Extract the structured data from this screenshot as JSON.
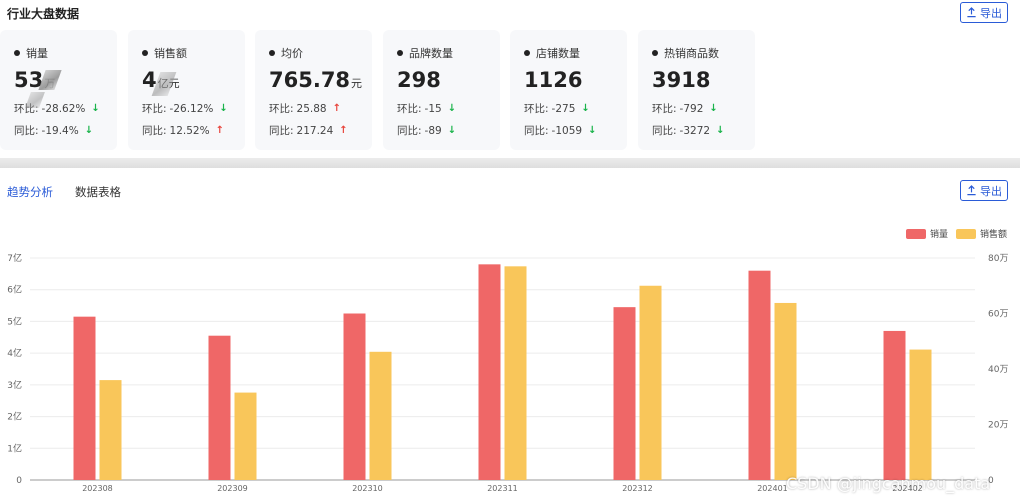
{
  "header": {
    "title": "行业大盘数据",
    "export_label": "导出"
  },
  "cards": [
    {
      "label": "销量",
      "value": "53",
      "unit": "万",
      "hb_label": "环比:",
      "hb_value": "-28.62%",
      "hb_dir": "down",
      "tb_label": "同比:",
      "tb_value": "-19.4%",
      "tb_dir": "down"
    },
    {
      "label": "销售额",
      "value": "4",
      "unit": "亿元",
      "hb_label": "环比:",
      "hb_value": "-26.12%",
      "hb_dir": "down",
      "tb_label": "同比:",
      "tb_value": "12.52%",
      "tb_dir": "up"
    },
    {
      "label": "均价",
      "value": "765.78",
      "unit": "元",
      "hb_label": "环比:",
      "hb_value": "25.88",
      "hb_dir": "up",
      "tb_label": "同比:",
      "tb_value": "217.24",
      "tb_dir": "up"
    },
    {
      "label": "品牌数量",
      "value": "298",
      "unit": "",
      "hb_label": "环比:",
      "hb_value": "-15",
      "hb_dir": "down",
      "tb_label": "同比:",
      "tb_value": "-89",
      "tb_dir": "down"
    },
    {
      "label": "店铺数量",
      "value": "1126",
      "unit": "",
      "hb_label": "环比:",
      "hb_value": "-275",
      "hb_dir": "down",
      "tb_label": "同比:",
      "tb_value": "-1059",
      "tb_dir": "down"
    },
    {
      "label": "热销商品数",
      "value": "3918",
      "unit": "",
      "hb_label": "环比:",
      "hb_value": "-792",
      "hb_dir": "down",
      "tb_label": "同比:",
      "tb_value": "-3272",
      "tb_dir": "down"
    }
  ],
  "tabs": [
    {
      "label": "趋势分析",
      "active": true
    },
    {
      "label": "数据表格",
      "active": false
    }
  ],
  "bottom_export_label": "导出",
  "colors": {
    "sales_volume": "#ef6767",
    "sales_amount": "#f9c65a",
    "accent": "#2a5bd7",
    "up": "#e8453c",
    "down": "#19b34a"
  },
  "icons": {
    "export": "upload-icon",
    "up": "arrow-up-icon",
    "down": "arrow-down-icon"
  },
  "chart_data": {
    "type": "bar",
    "categories": [
      "202308",
      "202309",
      "202310",
      "202311",
      "202312",
      "202401",
      "202402"
    ],
    "series": [
      {
        "name": "销量",
        "axis": "left",
        "values": [
          5.15,
          4.55,
          5.25,
          6.8,
          5.45,
          6.6,
          4.7
        ]
      },
      {
        "name": "销售额",
        "axis": "right",
        "values": [
          360000,
          315000,
          462000,
          770000,
          700000,
          638000,
          470000
        ]
      }
    ],
    "left_axis": {
      "ticks": [
        "0",
        "1亿",
        "2亿",
        "3亿",
        "4亿",
        "5亿",
        "6亿",
        "7亿"
      ],
      "range": [
        0,
        7
      ]
    },
    "right_axis": {
      "ticks": [
        "0",
        "20万",
        "40万",
        "60万",
        "80万"
      ],
      "range": [
        0,
        800000
      ]
    },
    "legend_position": "top-right",
    "grid": true
  },
  "watermark": "CSDN @jingcanmou_data"
}
